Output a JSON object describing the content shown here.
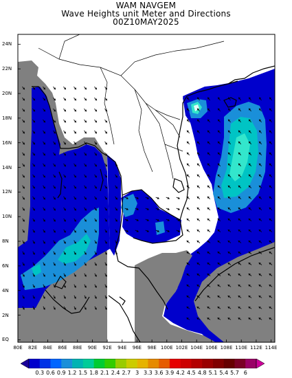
{
  "titles": {
    "line1": "WAM NAVGEM",
    "line2": "Wave Heights unit Meter and Directions",
    "line3": "00Z10MAY2025"
  },
  "map": {
    "lat_labels": [
      "24N",
      "22N",
      "20N",
      "18N",
      "16N",
      "14N",
      "12N",
      "10N",
      "8N",
      "6N",
      "4N",
      "2N",
      "EQ"
    ],
    "lon_labels": [
      "80E",
      "82E",
      "84E",
      "86E",
      "88E",
      "90E",
      "92E",
      "94E",
      "96E",
      "98E",
      "100E",
      "102E",
      "104E",
      "106E",
      "108E",
      "110E",
      "112E",
      "114E"
    ],
    "lon_range": [
      80,
      114.5
    ],
    "lat_range": [
      -0.2,
      24.8
    ],
    "colors": {
      "land": "#ffffff",
      "no_data": "#808080",
      "band_0_3_0_6": "#0000cc",
      "band_0_6_0_9": "#0033e0",
      "band_0_9_1_2": "#1a8fd9",
      "band_1_2_1_5": "#00c4c4",
      "band_1_5_1_8": "#33e6cc",
      "coast": "#000000"
    },
    "wave_direction": "predominantly from the southwest in the Bay of Bengal and Andaman Sea; from the northeast to east in the South China Sea"
  },
  "legend": {
    "labels": [
      "0.3",
      "0.6",
      "0.9",
      "1.2",
      "1.5",
      "1.8",
      "2.1",
      "2.4",
      "2.7",
      "3",
      "3.3",
      "3.6",
      "3.9",
      "4.2",
      "4.5",
      "4.8",
      "5.1",
      "5.4",
      "5.7",
      "6"
    ],
    "colors": [
      "#1a0099",
      "#0000cc",
      "#0033e6",
      "#0066ff",
      "#1a8fd9",
      "#00b3b3",
      "#00cc99",
      "#00cc33",
      "#33cc00",
      "#99cc00",
      "#cccc00",
      "#e6b300",
      "#e68a00",
      "#e65c00",
      "#e60000",
      "#cc0000",
      "#b30000",
      "#990000",
      "#800000",
      "#660000",
      "#7a0026",
      "#990066",
      "#cc0099"
    ]
  }
}
